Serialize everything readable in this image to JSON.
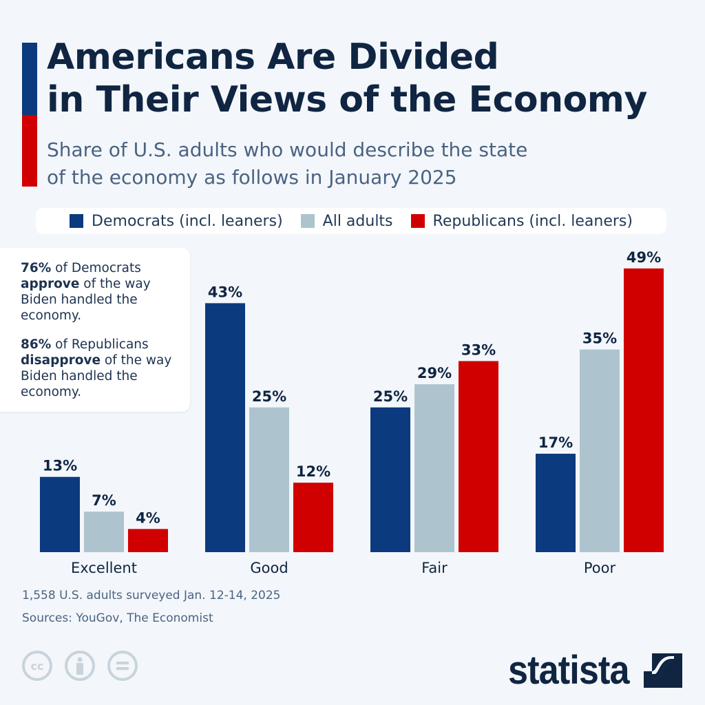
{
  "title_line1": "Americans Are Divided",
  "title_line2": "in Their Views of the Economy",
  "subtitle_line1": "Share of U.S. adults who would describe the state",
  "subtitle_line2": "of the economy as follows in January 2025",
  "note": {
    "p1_bold1": "76%",
    "p1_text1": " of Democrats ",
    "p1_bold2": "approve",
    "p1_text2": " of the way Biden handled the economy.",
    "p2_bold1": "86%",
    "p2_text1": " of Republicans ",
    "p2_bold2": "disapprove",
    "p2_text2": " of the way Biden handled the economy."
  },
  "footer": {
    "survey": "1,558 U.S. adults surveyed Jan. 12-14, 2025",
    "sources": "Sources: YouGov, The Economist",
    "license_icons": [
      "cc-icon",
      "attribution-icon",
      "no-derivatives-icon"
    ],
    "logo": "statista"
  },
  "chart_data": {
    "type": "bar",
    "categories": [
      "Excellent",
      "Good",
      "Fair",
      "Poor"
    ],
    "unit": "%",
    "ylim": [
      0,
      50
    ],
    "grid": false,
    "legend_placement": "top",
    "series": [
      {
        "name": "Democrats (incl. leaners)",
        "color": "#0b3a7e",
        "values": [
          13,
          43,
          25,
          17
        ]
      },
      {
        "name": "All adults",
        "color": "#adc4cf",
        "values": [
          7,
          25,
          29,
          35
        ]
      },
      {
        "name": "Republicans (incl. leaners)",
        "color": "#d10000",
        "values": [
          4,
          12,
          33,
          49
        ]
      }
    ]
  }
}
